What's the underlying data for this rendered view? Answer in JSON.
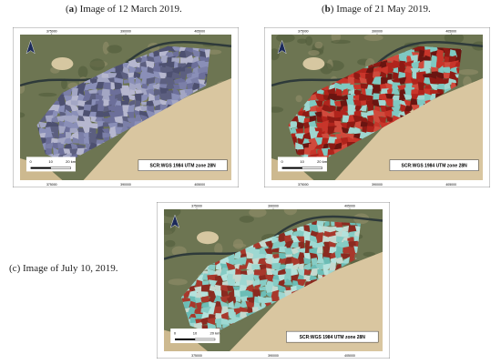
{
  "panels": [
    {
      "caption": [
        "(",
        "a",
        ") Image of 12 March 2019."
      ],
      "x_labels": [
        "375000",
        "390000",
        "405000"
      ],
      "scale_labels": [
        "0",
        "10",
        "20 km"
      ],
      "crs": "SCR:WGS 1984 UTM zone 28N"
    },
    {
      "caption": [
        "(",
        "b",
        ") Image of 21 May 2019."
      ],
      "x_labels": [
        "375000",
        "390000",
        "405000"
      ],
      "scale_labels": [
        "0",
        "10",
        "20 km"
      ],
      "crs": "SCR:WGS 1984 UTM zone 28N"
    },
    {
      "caption": [
        "(",
        "c",
        ") Image of July 10, 2019."
      ],
      "x_labels": [
        "375000",
        "390000",
        "405000"
      ],
      "scale_labels": [
        "0",
        "10",
        "20 km"
      ],
      "crs": "SCR:WGS 1984 UTM zone 28N"
    }
  ]
}
